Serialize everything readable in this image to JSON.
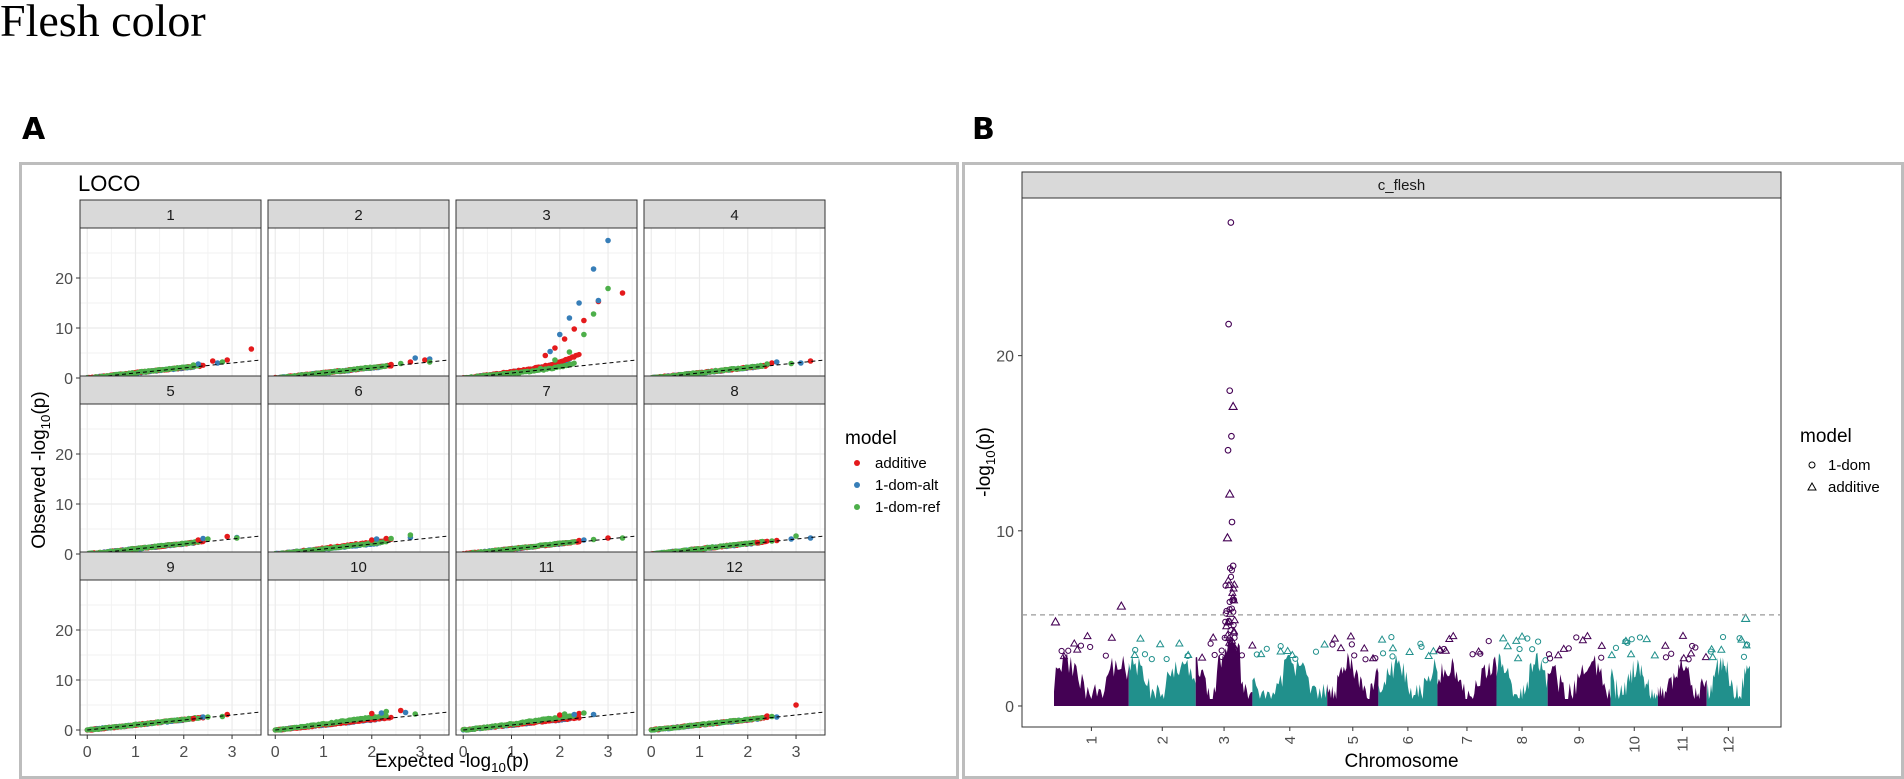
{
  "page_title": "Flesh color",
  "panels": {
    "a_label": "A",
    "b_label": "B"
  },
  "chart_data": [
    {
      "type": "scatter",
      "subtype": "qq-plot-faceted",
      "title": "LOCO",
      "xlabel": "Expected -log10(p)",
      "ylabel": "Observed -log10(p)",
      "xlabel_parts": {
        "main": "Expected -log",
        "sub": "10",
        "tail": "(p)"
      },
      "ylabel_parts": {
        "main": "Observed -log",
        "sub": "10",
        "tail": "(p)"
      },
      "xlim": [
        -0.15,
        3.6
      ],
      "ylim": [
        -1,
        30
      ],
      "xticks": [
        0,
        1,
        2,
        3
      ],
      "yticks": [
        0,
        10,
        20
      ],
      "facets": [
        "1",
        "2",
        "3",
        "4",
        "5",
        "6",
        "7",
        "8",
        "9",
        "10",
        "11",
        "12"
      ],
      "legend": {
        "title": "model",
        "position": "right",
        "items": [
          {
            "label": "additive",
            "color": "#e41a1c"
          },
          {
            "label": "1-dom-alt",
            "color": "#377eb8"
          },
          {
            "label": "1-dom-ref",
            "color": "#4daf4a"
          }
        ]
      },
      "reference_line": "y = x (dashed)",
      "series": [
        {
          "name": "additive",
          "points_by_facet": {
            "1": [
              [
                2.6,
                3.4
              ],
              [
                2.9,
                3.6
              ],
              [
                3.4,
                5.8
              ]
            ],
            "2": [
              [
                2.4,
                2.7
              ],
              [
                2.8,
                3.2
              ],
              [
                3.1,
                3.6
              ]
            ],
            "3": [
              [
                1.7,
                4.5
              ],
              [
                1.9,
                6.0
              ],
              [
                2.1,
                7.8
              ],
              [
                2.3,
                9.8
              ],
              [
                2.5,
                11.5
              ],
              [
                2.8,
                15.3
              ],
              [
                3.3,
                17.0
              ]
            ],
            "4": [
              [
                2.5,
                3.0
              ],
              [
                3.3,
                3.4
              ]
            ],
            "5": [
              [
                2.3,
                2.8
              ],
              [
                2.9,
                3.5
              ]
            ],
            "6": [
              [
                2.0,
                2.8
              ],
              [
                2.3,
                3.1
              ]
            ],
            "7": [
              [
                2.4,
                2.7
              ],
              [
                3.0,
                3.2
              ]
            ],
            "8": [
              [
                2.2,
                2.3
              ],
              [
                2.6,
                2.7
              ]
            ],
            "9": [
              [
                2.2,
                2.3
              ],
              [
                2.9,
                3.1
              ]
            ],
            "10": [
              [
                2.0,
                3.3
              ],
              [
                2.6,
                3.9
              ]
            ],
            "11": [
              [
                2.0,
                3.0
              ],
              [
                2.4,
                3.3
              ]
            ],
            "12": [
              [
                2.4,
                2.8
              ],
              [
                3.0,
                5.0
              ]
            ]
          }
        },
        {
          "name": "1-dom-alt",
          "points_by_facet": {
            "1": [
              [
                2.3,
                2.8
              ],
              [
                2.7,
                3.0
              ]
            ],
            "2": [
              [
                2.9,
                4.0
              ],
              [
                3.2,
                3.8
              ]
            ],
            "3": [
              [
                1.8,
                5.3
              ],
              [
                2.0,
                8.7
              ],
              [
                2.2,
                12.0
              ],
              [
                2.4,
                15.0
              ],
              [
                2.7,
                21.8
              ],
              [
                2.8,
                15.5
              ],
              [
                3.0,
                27.5
              ]
            ],
            "4": [
              [
                2.6,
                3.2
              ],
              [
                3.1,
                3.0
              ]
            ],
            "5": [
              [
                2.4,
                3.1
              ],
              [
                3.1,
                3.3
              ]
            ],
            "6": [
              [
                2.1,
                3.0
              ],
              [
                2.8,
                3.3
              ]
            ],
            "7": [
              [
                2.5,
                2.8
              ]
            ],
            "8": [
              [
                2.9,
                3.0
              ],
              [
                3.3,
                3.2
              ]
            ],
            "9": [
              [
                2.4,
                2.6
              ]
            ],
            "10": [
              [
                2.2,
                3.4
              ],
              [
                2.7,
                3.5
              ]
            ],
            "11": [
              [
                2.3,
                3.1
              ],
              [
                2.7,
                3.1
              ]
            ],
            "12": [
              [
                2.6,
                2.6
              ]
            ]
          }
        },
        {
          "name": "1-dom-ref",
          "points_by_facet": {
            "1": [
              [
                2.2,
                2.6
              ],
              [
                2.8,
                3.2
              ]
            ],
            "2": [
              [
                2.6,
                2.9
              ],
              [
                3.2,
                3.2
              ]
            ],
            "3": [
              [
                1.6,
                1.9
              ],
              [
                1.9,
                3.6
              ],
              [
                2.2,
                5.2
              ],
              [
                2.5,
                8.7
              ],
              [
                2.7,
                12.8
              ],
              [
                3.0,
                17.9
              ]
            ],
            "4": [
              [
                2.4,
                2.8
              ],
              [
                2.9,
                2.9
              ]
            ],
            "5": [
              [
                2.5,
                3.0
              ],
              [
                3.1,
                3.2
              ]
            ],
            "6": [
              [
                2.4,
                3.1
              ],
              [
                2.8,
                3.8
              ]
            ],
            "7": [
              [
                2.7,
                2.9
              ],
              [
                3.3,
                3.2
              ]
            ],
            "8": [
              [
                2.5,
                2.6
              ],
              [
                3.0,
                3.6
              ]
            ],
            "9": [
              [
                2.5,
                2.6
              ],
              [
                2.8,
                2.7
              ]
            ],
            "10": [
              [
                2.3,
                3.7
              ],
              [
                2.9,
                3.2
              ]
            ],
            "11": [
              [
                2.1,
                3.2
              ],
              [
                2.5,
                3.4
              ]
            ],
            "12": [
              [
                2.5,
                2.7
              ]
            ]
          }
        }
      ]
    },
    {
      "type": "scatter",
      "subtype": "manhattan",
      "facet_label": "c_flesh",
      "xlabel": "Chromosome",
      "ylabel": "-log10(p)",
      "ylabel_parts": {
        "main": "-log",
        "sub": "10",
        "tail": "(p)"
      },
      "ylim": [
        -1.2,
        29
      ],
      "yticks": [
        0,
        10,
        20
      ],
      "chromosomes": [
        "1",
        "2",
        "3",
        "4",
        "5",
        "6",
        "7",
        "8",
        "9",
        "10",
        "11",
        "12"
      ],
      "chromosome_colors": [
        "#440154",
        "#21908c"
      ],
      "threshold": 5.2,
      "legend": {
        "title": "model",
        "position": "right",
        "items": [
          {
            "label": "1-dom",
            "shape": "circle"
          },
          {
            "label": "additive",
            "shape": "triangle"
          }
        ]
      },
      "highlight_points": [
        {
          "model": "1-dom",
          "chr": "3",
          "pos": 0.62,
          "y": 27.6
        },
        {
          "model": "1-dom",
          "chr": "3",
          "pos": 0.58,
          "y": 21.8
        },
        {
          "model": "1-dom",
          "chr": "3",
          "pos": 0.6,
          "y": 18.0
        },
        {
          "model": "additive",
          "chr": "3",
          "pos": 0.66,
          "y": 17.1
        },
        {
          "model": "1-dom",
          "chr": "3",
          "pos": 0.63,
          "y": 15.4
        },
        {
          "model": "1-dom",
          "chr": "3",
          "pos": 0.57,
          "y": 14.6
        },
        {
          "model": "additive",
          "chr": "3",
          "pos": 0.6,
          "y": 12.1
        },
        {
          "model": "1-dom",
          "chr": "3",
          "pos": 0.64,
          "y": 10.5
        },
        {
          "model": "additive",
          "chr": "3",
          "pos": 0.56,
          "y": 9.6
        },
        {
          "model": "1-dom",
          "chr": "3",
          "pos": 0.66,
          "y": 8.0
        },
        {
          "model": "additive",
          "chr": "1",
          "pos": 0.02,
          "y": 4.8
        },
        {
          "model": "additive",
          "chr": "1",
          "pos": 0.9,
          "y": 5.7
        },
        {
          "model": "additive",
          "chr": "12",
          "pos": 0.9,
          "y": 5.0
        }
      ]
    }
  ]
}
